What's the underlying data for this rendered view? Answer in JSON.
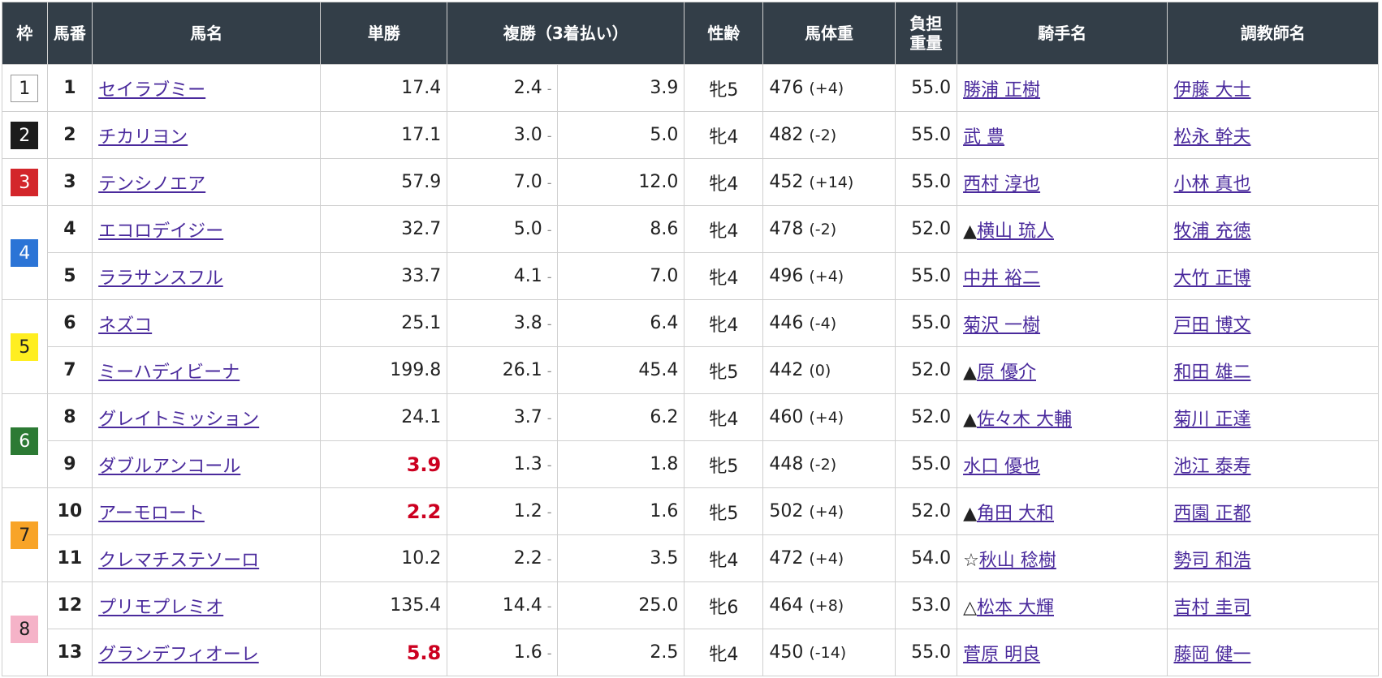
{
  "colors": {
    "header_bg": "#333e48",
    "header_text": "#ffffff",
    "link": "#4a2a9c",
    "favorite_odds": "#cc0020",
    "border": "#cfcfcf"
  },
  "headers": {
    "waku": "枠",
    "umaban": "馬番",
    "name": "馬名",
    "win": "単勝",
    "place": "複勝（3着払い）",
    "sexage": "性齢",
    "weight": "馬体重",
    "kinryo_line1": "負担",
    "kinryo_line2": "重量",
    "jockey": "騎手名",
    "trainer": "調教師名"
  },
  "waku_groups": [
    {
      "label": "1",
      "bg": "#ffffff",
      "fg": "#222222",
      "border": "#999999"
    },
    {
      "label": "2",
      "bg": "#1c1c1c",
      "fg": "#ffffff",
      "border": "#1c1c1c"
    },
    {
      "label": "3",
      "bg": "#d3262b",
      "fg": "#ffffff",
      "border": "#d3262b"
    },
    {
      "label": "4",
      "bg": "#2b74d6",
      "fg": "#ffffff",
      "border": "#2b74d6"
    },
    {
      "label": "5",
      "bg": "#ffee20",
      "fg": "#222222",
      "border": "#ffee20"
    },
    {
      "label": "6",
      "bg": "#2c7a34",
      "fg": "#ffffff",
      "border": "#2c7a34"
    },
    {
      "label": "7",
      "bg": "#f8a428",
      "fg": "#222222",
      "border": "#f8a428"
    },
    {
      "label": "8",
      "bg": "#f5b3c8",
      "fg": "#222222",
      "border": "#f5b3c8"
    }
  ],
  "rows": [
    {
      "waku": "1",
      "waku_span": 1,
      "num": "1",
      "name": "セイラブミー",
      "win": "17.4",
      "fav": false,
      "place_min": "2.4",
      "place_max": "3.9",
      "sexage": "牝5",
      "weight": "476",
      "weight_diff": "(+4)",
      "kinryo": "55.0",
      "mark": "",
      "jockey": "勝浦 正樹",
      "trainer": "伊藤 大士"
    },
    {
      "waku": "2",
      "waku_span": 1,
      "num": "2",
      "name": "チカリヨン",
      "win": "17.1",
      "fav": false,
      "place_min": "3.0",
      "place_max": "5.0",
      "sexage": "牝4",
      "weight": "482",
      "weight_diff": "(-2)",
      "kinryo": "55.0",
      "mark": "",
      "jockey": "武 豊",
      "trainer": "松永 幹夫"
    },
    {
      "waku": "3",
      "waku_span": 1,
      "num": "3",
      "name": "テンシノエア",
      "win": "57.9",
      "fav": false,
      "place_min": "7.0",
      "place_max": "12.0",
      "sexage": "牝4",
      "weight": "452",
      "weight_diff": "(+14)",
      "kinryo": "55.0",
      "mark": "",
      "jockey": "西村 淳也",
      "trainer": "小林 真也"
    },
    {
      "waku": "4",
      "waku_span": 2,
      "num": "4",
      "name": "エコロデイジー",
      "win": "32.7",
      "fav": false,
      "place_min": "5.0",
      "place_max": "8.6",
      "sexage": "牝4",
      "weight": "478",
      "weight_diff": "(-2)",
      "kinryo": "52.0",
      "mark": "▲",
      "jockey": "横山 琉人",
      "trainer": "牧浦 充徳"
    },
    {
      "waku": "",
      "waku_span": 0,
      "num": "5",
      "name": "ララサンスフル",
      "win": "33.7",
      "fav": false,
      "place_min": "4.1",
      "place_max": "7.0",
      "sexage": "牝4",
      "weight": "496",
      "weight_diff": "(+4)",
      "kinryo": "55.0",
      "mark": "",
      "jockey": "中井 裕二",
      "trainer": "大竹 正博"
    },
    {
      "waku": "5",
      "waku_span": 2,
      "num": "6",
      "name": "ネズコ",
      "win": "25.1",
      "fav": false,
      "place_min": "3.8",
      "place_max": "6.4",
      "sexage": "牝4",
      "weight": "446",
      "weight_diff": "(-4)",
      "kinryo": "55.0",
      "mark": "",
      "jockey": "菊沢 一樹",
      "trainer": "戸田 博文"
    },
    {
      "waku": "",
      "waku_span": 0,
      "num": "7",
      "name": "ミーハディビーナ",
      "win": "199.8",
      "fav": false,
      "place_min": "26.1",
      "place_max": "45.4",
      "sexage": "牝5",
      "weight": "442",
      "weight_diff": "(0)",
      "kinryo": "52.0",
      "mark": "▲",
      "jockey": "原 優介",
      "trainer": "和田 雄二"
    },
    {
      "waku": "6",
      "waku_span": 2,
      "num": "8",
      "name": "グレイトミッション",
      "win": "24.1",
      "fav": false,
      "place_min": "3.7",
      "place_max": "6.2",
      "sexage": "牝4",
      "weight": "460",
      "weight_diff": "(+4)",
      "kinryo": "52.0",
      "mark": "▲",
      "jockey": "佐々木 大輔",
      "trainer": "菊川 正達"
    },
    {
      "waku": "",
      "waku_span": 0,
      "num": "9",
      "name": "ダブルアンコール",
      "win": "3.9",
      "fav": true,
      "place_min": "1.3",
      "place_max": "1.8",
      "sexage": "牝5",
      "weight": "448",
      "weight_diff": "(-2)",
      "kinryo": "55.0",
      "mark": "",
      "jockey": "水口 優也",
      "trainer": "池江 泰寿"
    },
    {
      "waku": "7",
      "waku_span": 2,
      "num": "10",
      "name": "アーモロート",
      "win": "2.2",
      "fav": true,
      "place_min": "1.2",
      "place_max": "1.6",
      "sexage": "牝5",
      "weight": "502",
      "weight_diff": "(+4)",
      "kinryo": "52.0",
      "mark": "▲",
      "jockey": "角田 大和",
      "trainer": "西園 正都"
    },
    {
      "waku": "",
      "waku_span": 0,
      "num": "11",
      "name": "クレマチステソーロ",
      "win": "10.2",
      "fav": false,
      "place_min": "2.2",
      "place_max": "3.5",
      "sexage": "牝4",
      "weight": "472",
      "weight_diff": "(+4)",
      "kinryo": "54.0",
      "mark": "☆",
      "jockey": "秋山 稔樹",
      "trainer": "勢司 和浩"
    },
    {
      "waku": "8",
      "waku_span": 2,
      "num": "12",
      "name": "プリモプレミオ",
      "win": "135.4",
      "fav": false,
      "place_min": "14.4",
      "place_max": "25.0",
      "sexage": "牝6",
      "weight": "464",
      "weight_diff": "(+8)",
      "kinryo": "53.0",
      "mark": "△",
      "jockey": "松本 大輝",
      "trainer": "吉村 圭司"
    },
    {
      "waku": "",
      "waku_span": 0,
      "num": "13",
      "name": "グランデフィオーレ",
      "win": "5.8",
      "fav": true,
      "place_min": "1.6",
      "place_max": "2.5",
      "sexage": "牝4",
      "weight": "450",
      "weight_diff": "(-14)",
      "kinryo": "55.0",
      "mark": "",
      "jockey": "菅原 明良",
      "trainer": "藤岡 健一"
    }
  ]
}
